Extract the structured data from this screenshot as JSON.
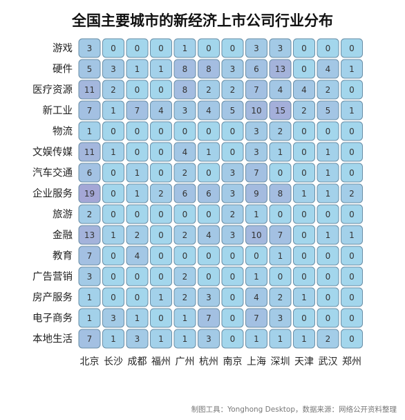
{
  "chart_data": {
    "type": "heatmap",
    "title": "全国主要城市的新经济上市公司行业分布",
    "x_categories": [
      "北京",
      "长沙",
      "成都",
      "福州",
      "广州",
      "杭州",
      "南京",
      "上海",
      "深圳",
      "天津",
      "武汉",
      "郑州"
    ],
    "y_categories": [
      "游戏",
      "硬件",
      "医疗资源",
      "新工业",
      "物流",
      "文娱传媒",
      "汽车交通",
      "企业服务",
      "旅游",
      "金融",
      "教育",
      "广告营销",
      "房产服务",
      "电子商务",
      "本地生活"
    ],
    "values": [
      [
        3,
        0,
        0,
        0,
        1,
        0,
        0,
        3,
        3,
        0,
        0,
        0
      ],
      [
        5,
        3,
        1,
        1,
        8,
        8,
        3,
        6,
        13,
        0,
        4,
        1
      ],
      [
        11,
        2,
        0,
        0,
        8,
        2,
        2,
        7,
        4,
        4,
        2,
        0
      ],
      [
        7,
        1,
        7,
        4,
        3,
        4,
        5,
        10,
        15,
        2,
        5,
        1
      ],
      [
        1,
        0,
        0,
        0,
        0,
        0,
        0,
        3,
        2,
        0,
        0,
        0
      ],
      [
        11,
        1,
        0,
        0,
        4,
        1,
        0,
        3,
        1,
        0,
        1,
        0
      ],
      [
        6,
        0,
        1,
        0,
        2,
        0,
        3,
        7,
        0,
        0,
        1,
        0
      ],
      [
        19,
        0,
        1,
        2,
        6,
        6,
        3,
        9,
        8,
        1,
        1,
        2
      ],
      [
        2,
        0,
        0,
        0,
        0,
        0,
        2,
        1,
        0,
        0,
        0,
        0
      ],
      [
        13,
        1,
        2,
        0,
        2,
        4,
        3,
        10,
        7,
        0,
        1,
        1
      ],
      [
        7,
        0,
        4,
        0,
        0,
        0,
        0,
        0,
        1,
        0,
        0,
        0
      ],
      [
        3,
        0,
        0,
        0,
        2,
        0,
        0,
        1,
        0,
        0,
        0,
        0
      ],
      [
        1,
        0,
        0,
        1,
        2,
        3,
        0,
        4,
        2,
        1,
        0,
        0
      ],
      [
        1,
        3,
        1,
        0,
        1,
        7,
        0,
        7,
        3,
        0,
        0,
        0
      ],
      [
        7,
        1,
        3,
        1,
        1,
        3,
        0,
        1,
        1,
        1,
        2,
        0
      ]
    ],
    "color_low": "#a3d6ec",
    "color_high": "#a4a7d6",
    "cell_border_color": "#6a8ea6",
    "legend": "none"
  },
  "footer": "制图工具：Yonghong Desktop，数据来源：网络公开资料整理"
}
